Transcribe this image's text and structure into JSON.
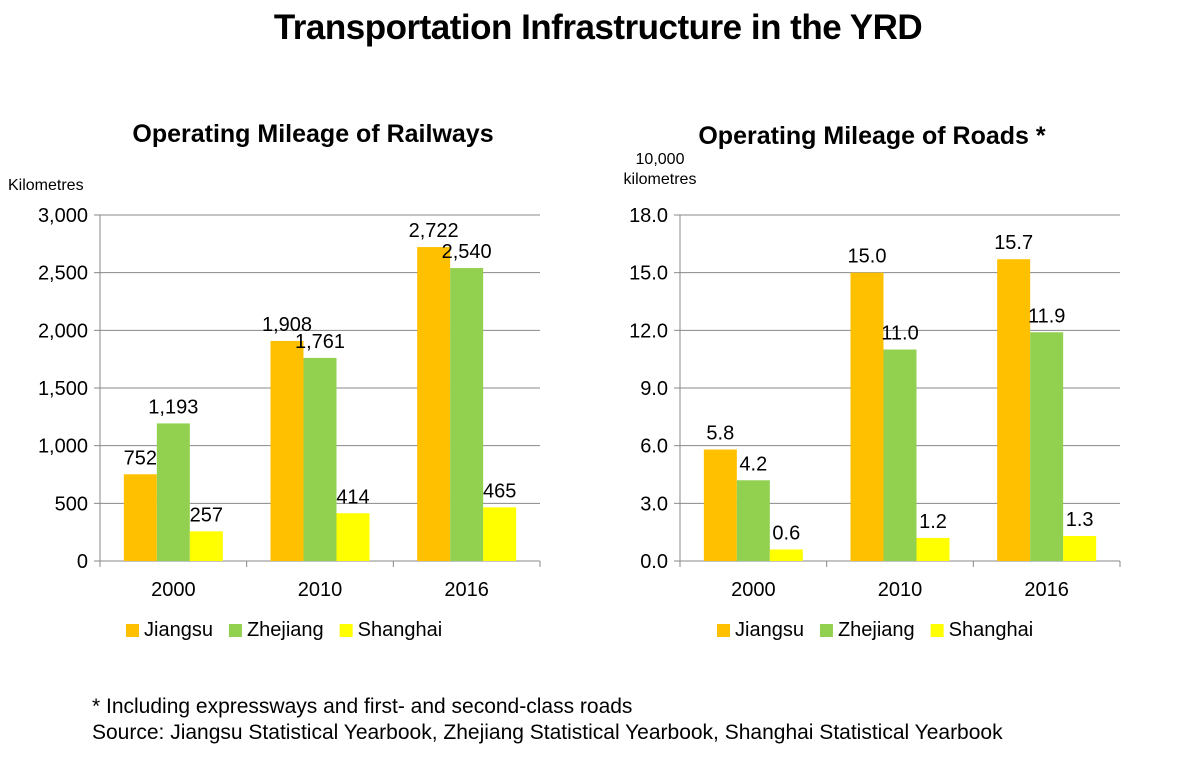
{
  "title": "Transportation Infrastructure in the YRD",
  "colors": {
    "Jiangsu": "#FFC000",
    "Zhejiang": "#92D050",
    "Shanghai": "#FFFF00",
    "axis": "#888888",
    "grid": "#888888"
  },
  "chart_data": [
    {
      "type": "bar",
      "title": "Operating Mileage of Railways",
      "ylabel": "Kilometres",
      "categories": [
        "2000",
        "2010",
        "2016"
      ],
      "series": [
        {
          "name": "Jiangsu",
          "values": [
            752,
            1908,
            2722
          ]
        },
        {
          "name": "Zhejiang",
          "values": [
            1193,
            1761,
            2540
          ]
        },
        {
          "name": "Shanghai",
          "values": [
            257,
            414,
            465
          ]
        }
      ],
      "data_labels": [
        [
          "752",
          "1,908",
          "2,722"
        ],
        [
          "1,193",
          "1,761",
          "2,540"
        ],
        [
          "257",
          "414",
          "465"
        ]
      ],
      "ylim": [
        0,
        3000
      ],
      "yticks": [
        0,
        500,
        1000,
        1500,
        2000,
        2500,
        3000
      ],
      "ytick_labels": [
        "0",
        "500",
        "1,000",
        "1,500",
        "2,000",
        "2,500",
        "3,000"
      ],
      "grid": true,
      "legend": "bottom"
    },
    {
      "type": "bar",
      "title": "Operating Mileage of Roads *",
      "ylabel": "10,000 kilometres",
      "ylabel_lines": [
        "10,000",
        "kilometres"
      ],
      "categories": [
        "2000",
        "2010",
        "2016"
      ],
      "series": [
        {
          "name": "Jiangsu",
          "values": [
            5.8,
            15.0,
            15.7
          ]
        },
        {
          "name": "Zhejiang",
          "values": [
            4.2,
            11.0,
            11.9
          ]
        },
        {
          "name": "Shanghai",
          "values": [
            0.6,
            1.2,
            1.3
          ]
        }
      ],
      "data_labels": [
        [
          "5.8",
          "15.0",
          "15.7"
        ],
        [
          "4.2",
          "11.0",
          "11.9"
        ],
        [
          "0.6",
          "1.2",
          "1.3"
        ]
      ],
      "ylim": [
        0,
        18
      ],
      "yticks": [
        0,
        3,
        6,
        9,
        12,
        15,
        18
      ],
      "ytick_labels": [
        "0.0",
        "3.0",
        "6.0",
        "9.0",
        "12.0",
        "15.0",
        "18.0"
      ],
      "grid": true,
      "legend": "bottom"
    }
  ],
  "notes": [
    "* Including expressways and first- and second-class roads",
    "Source: Jiangsu Statistical Yearbook, Zhejiang Statistical Yearbook, Shanghai Statistical Yearbook"
  ]
}
